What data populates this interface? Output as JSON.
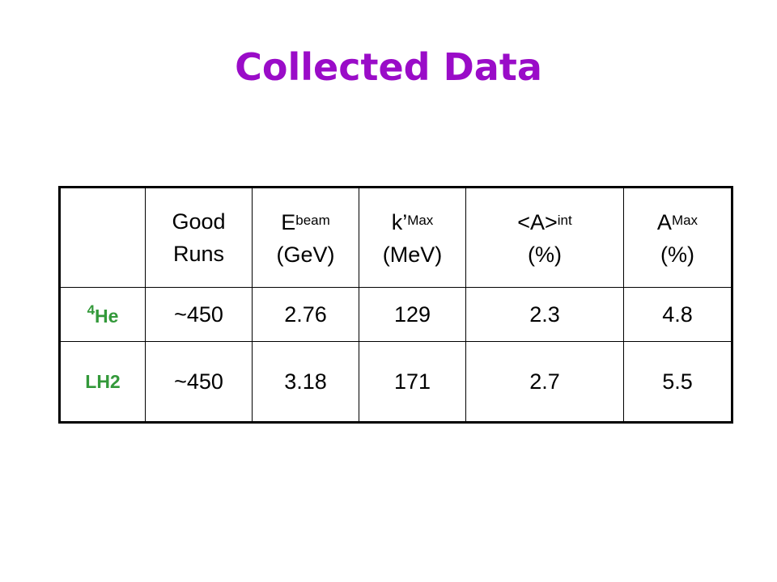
{
  "header": {
    "title": "Collected Data"
  },
  "table": {
    "header": [
      {
        "text": "Good Runs"
      },
      {
        "main": "E",
        "sub": "beam",
        "unit": "(GeV)"
      },
      {
        "main": "k’",
        "sub": "Max",
        "unit": "(MeV)"
      },
      {
        "main": "<A>",
        "sub": "int",
        "unit": "(%)"
      },
      {
        "main": "A",
        "sub": "Max",
        "unit": "(%)"
      }
    ],
    "rows": [
      {
        "label": {
          "sup": "4",
          "main": "He"
        },
        "values": [
          "~450",
          2.76,
          129,
          2.3,
          4.8
        ]
      },
      {
        "label": {
          "main": "LH2"
        },
        "values": [
          "~450",
          3.18,
          171,
          2.7,
          5.5
        ]
      }
    ]
  }
}
